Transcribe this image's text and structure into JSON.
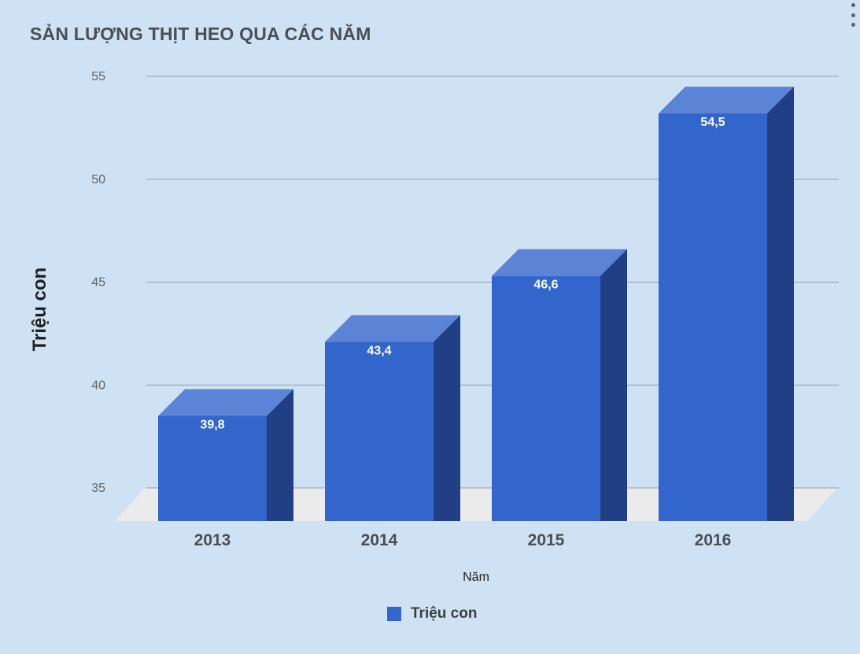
{
  "chart_data": {
    "type": "bar",
    "title": "SẢN LƯỢNG THỊT HEO QUA CÁC NĂM",
    "xlabel": "Năm",
    "ylabel": "Triệu con",
    "categories": [
      "2013",
      "2014",
      "2015",
      "2016"
    ],
    "series": [
      {
        "name": "Triệu con",
        "values": [
          39.8,
          43.4,
          46.6,
          54.5
        ],
        "labels": [
          "39,8",
          "43,4",
          "46,6",
          "54,5"
        ]
      }
    ],
    "y_ticks": [
      "35",
      "40",
      "45",
      "50",
      "55"
    ],
    "ylim": [
      35,
      55
    ],
    "grid": true,
    "legend": "bottom",
    "colors": {
      "front": "#3366cc",
      "top": "#5b84d6",
      "side": "#213f84",
      "floor": "#ebebeb",
      "grid": "#8fa0ae"
    }
  },
  "legend": {
    "label": "Triệu con"
  }
}
